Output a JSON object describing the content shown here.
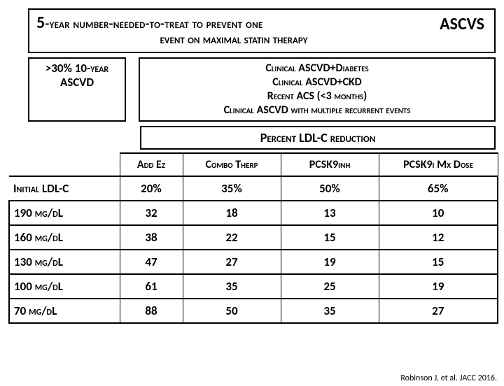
{
  "title": {
    "line1_prefix": "5",
    "line1_rest": "-year number-needed-to-treat to prevent one",
    "line2": "event on maximal statin therapy",
    "ascvs": "ASCVS"
  },
  "risk_header": {
    "line1": ">30% 10-year",
    "line2": "ASCVD"
  },
  "indications": {
    "l1": "Clinical ASCVD+Diabetes",
    "l2": "Clinical ASCVD+CKD",
    "l3": "Recent ACS (<3 months)",
    "l4": "Clinical ASCVD with multiple recurrent events"
  },
  "pct_reduction_header": "Percent LDL-C reduction",
  "columns": {
    "c0": "Initial LDL-C",
    "c1": "Add Ez",
    "c2": "Combo Therp",
    "c3": "PCSK9inh",
    "c4": "PCSK9i Mx Dose"
  },
  "pct_row": {
    "c1": "20%",
    "c2": "35%",
    "c3": "50%",
    "c4": "65%"
  },
  "rows": [
    {
      "label": "190 mg/dL",
      "c1": "32",
      "c2": "18",
      "c3": "13",
      "c4": "10"
    },
    {
      "label": "160 mg/dL",
      "c1": "38",
      "c2": "22",
      "c3": "15",
      "c4": "12"
    },
    {
      "label": "130 mg/dL",
      "c1": "47",
      "c2": "27",
      "c3": "19",
      "c4": "15"
    },
    {
      "label": "100 mg/dL",
      "c1": "61",
      "c2": "35",
      "c3": "25",
      "c4": "19"
    },
    {
      "label": "70 mg/dL",
      "c1": "88",
      "c2": "50",
      "c3": "35",
      "c4": "27"
    }
  ],
  "citation": "Robinson J, et al. JACC 2016.",
  "style": {
    "border_color": "#000000",
    "background_color": "#ffffff",
    "title_fontsize": 19,
    "cell_fontsize": 17
  }
}
